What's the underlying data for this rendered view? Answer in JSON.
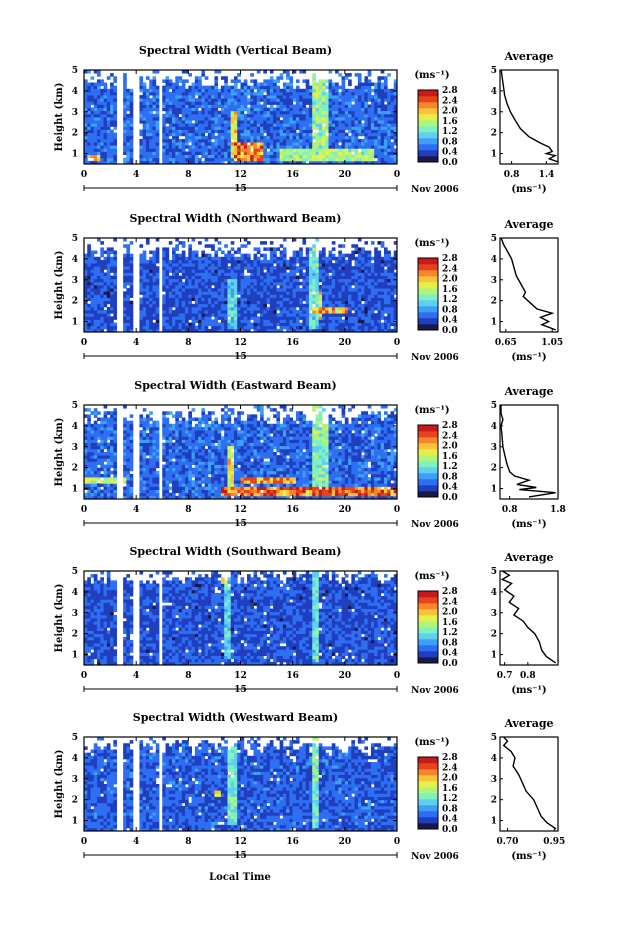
{
  "figure": {
    "xlabel": "Local Time",
    "units": "(ms⁻¹)",
    "month_label": "Nov 2006",
    "day_label": "15",
    "avg_title": "Average",
    "avg_xlabel": "(ms⁻¹)"
  },
  "chart_data": [
    {
      "type": "heatmap",
      "title": "Spectral Width (Vertical Beam)",
      "ylabel": "Height (km)",
      "x_range_hours": [
        0,
        24
      ],
      "x_ticks": [
        "0",
        "4",
        "8",
        "12",
        "16",
        "20",
        "0"
      ],
      "y_range_km": [
        0.5,
        5
      ],
      "y_ticks": [
        "1",
        "2",
        "3",
        "4",
        "5"
      ],
      "colorbar_ticks": [
        "0.0",
        "0.4",
        "0.8",
        "1.2",
        "1.6",
        "2.0",
        "2.4",
        "2.8"
      ],
      "colorbar_range": [
        0,
        2.8
      ],
      "data_gaps_hours": [
        [
          2.5,
          3.0
        ],
        [
          3.6,
          4.2
        ],
        [
          5.6,
          5.9
        ]
      ],
      "cloud_top_km": 4.3,
      "base_level": 0.55,
      "strong_events": [
        {
          "t": [
            11.5,
            13.5
          ],
          "h": [
            0.6,
            1.4
          ],
          "level": 2.5
        },
        {
          "t": [
            0.2,
            1.0
          ],
          "h": [
            0.6,
            0.9
          ],
          "level": 2.2
        },
        {
          "t": [
            17.5,
            18.5
          ],
          "h": [
            0.6,
            5.0
          ],
          "level": 1.6
        },
        {
          "t": [
            11.2,
            11.6
          ],
          "h": [
            0.8,
            3.0
          ],
          "level": 2.0
        },
        {
          "t": [
            15.0,
            22.0
          ],
          "h": [
            0.6,
            1.1
          ],
          "level": 1.6
        }
      ],
      "profile": {
        "x_ticks": [
          "0.8",
          "1.4"
        ],
        "x_range": [
          0.6,
          1.6
        ],
        "y_range": [
          0.5,
          5
        ],
        "points": [
          [
            0.62,
            5.0
          ],
          [
            0.64,
            4.6
          ],
          [
            0.66,
            4.2
          ],
          [
            0.68,
            3.8
          ],
          [
            0.72,
            3.4
          ],
          [
            0.78,
            3.0
          ],
          [
            0.86,
            2.6
          ],
          [
            0.95,
            2.2
          ],
          [
            1.1,
            1.8
          ],
          [
            1.3,
            1.5
          ],
          [
            1.45,
            1.3
          ],
          [
            1.5,
            1.1
          ],
          [
            1.4,
            1.0
          ],
          [
            1.55,
            0.9
          ],
          [
            1.45,
            0.75
          ],
          [
            1.6,
            0.6
          ]
        ]
      }
    },
    {
      "type": "heatmap",
      "title": "Spectral Width (Northward Beam)",
      "ylabel": "Height (km)",
      "x_range_hours": [
        0,
        24
      ],
      "x_ticks": [
        "0",
        "4",
        "8",
        "12",
        "16",
        "20",
        "0"
      ],
      "y_range_km": [
        0.5,
        5
      ],
      "y_ticks": [
        "1",
        "2",
        "3",
        "4",
        "5"
      ],
      "colorbar_ticks": [
        "0.0",
        "0.4",
        "0.8",
        "1.2",
        "1.6",
        "2.0",
        "2.4",
        "2.8"
      ],
      "colorbar_range": [
        0,
        2.8
      ],
      "data_gaps_hours": [
        [
          2.5,
          3.0
        ],
        [
          3.6,
          4.2
        ],
        [
          5.6,
          5.9
        ]
      ],
      "cloud_top_km": 4.2,
      "base_level": 0.45,
      "strong_events": [
        {
          "t": [
            17.2,
            17.8
          ],
          "h": [
            0.6,
            5.0
          ],
          "level": 1.3
        },
        {
          "t": [
            11.0,
            11.5
          ],
          "h": [
            0.6,
            3.0
          ],
          "level": 1.2
        },
        {
          "t": [
            17.8,
            18.2
          ],
          "h": [
            1.0,
            2.3
          ],
          "level": 2.0
        },
        {
          "t": [
            17.5,
            20.0
          ],
          "h": [
            1.3,
            1.6
          ],
          "level": 2.2
        }
      ],
      "profile": {
        "x_ticks": [
          "0.65",
          "1.05"
        ],
        "x_range": [
          0.6,
          1.1
        ],
        "y_range": [
          0.5,
          5
        ],
        "points": [
          [
            0.61,
            5.0
          ],
          [
            0.63,
            4.7
          ],
          [
            0.66,
            4.4
          ],
          [
            0.7,
            4.0
          ],
          [
            0.72,
            3.6
          ],
          [
            0.74,
            3.2
          ],
          [
            0.78,
            2.8
          ],
          [
            0.82,
            2.4
          ],
          [
            0.8,
            2.2
          ],
          [
            0.86,
            1.9
          ],
          [
            0.92,
            1.6
          ],
          [
            1.05,
            1.4
          ],
          [
            0.95,
            1.2
          ],
          [
            1.02,
            1.0
          ],
          [
            0.96,
            0.85
          ],
          [
            1.08,
            0.6
          ]
        ]
      }
    },
    {
      "type": "heatmap",
      "title": "Spectral Width (Eastward Beam)",
      "ylabel": "Height (km)",
      "x_range_hours": [
        0,
        24
      ],
      "x_ticks": [
        "0",
        "4",
        "8",
        "12",
        "16",
        "20",
        "0"
      ],
      "y_range_km": [
        0.5,
        5
      ],
      "y_ticks": [
        "1",
        "2",
        "3",
        "4",
        "5"
      ],
      "colorbar_ticks": [
        "0.0",
        "0.4",
        "0.8",
        "1.2",
        "1.6",
        "2.0",
        "2.4",
        "2.8"
      ],
      "colorbar_range": [
        0,
        2.8
      ],
      "data_gaps_hours": [
        [
          2.5,
          3.0
        ],
        [
          3.6,
          4.2
        ],
        [
          5.6,
          5.9
        ]
      ],
      "cloud_top_km": 4.3,
      "base_level": 0.55,
      "strong_events": [
        {
          "t": [
            10.5,
            24.0
          ],
          "h": [
            0.6,
            1.0
          ],
          "level": 2.6
        },
        {
          "t": [
            0.0,
            3.0
          ],
          "h": [
            1.2,
            1.5
          ],
          "level": 1.8
        },
        {
          "t": [
            17.5,
            18.5
          ],
          "h": [
            0.6,
            5.0
          ],
          "level": 1.5
        },
        {
          "t": [
            11.0,
            11.4
          ],
          "h": [
            1.0,
            3.0
          ],
          "level": 2.0
        },
        {
          "t": [
            12.0,
            16.0
          ],
          "h": [
            1.2,
            1.5
          ],
          "level": 2.3
        }
      ],
      "profile": {
        "x_ticks": [
          "0.8",
          "1.8"
        ],
        "x_range": [
          0.6,
          1.8
        ],
        "y_range": [
          0.5,
          5
        ],
        "points": [
          [
            0.62,
            5.0
          ],
          [
            0.62,
            4.6
          ],
          [
            0.66,
            4.3
          ],
          [
            0.62,
            4.0
          ],
          [
            0.64,
            3.6
          ],
          [
            0.66,
            3.0
          ],
          [
            0.7,
            2.6
          ],
          [
            0.74,
            2.2
          ],
          [
            0.8,
            1.8
          ],
          [
            0.9,
            1.6
          ],
          [
            1.2,
            1.4
          ],
          [
            0.95,
            1.2
          ],
          [
            1.35,
            1.05
          ],
          [
            1.0,
            0.95
          ],
          [
            1.75,
            0.8
          ],
          [
            1.2,
            0.6
          ]
        ]
      }
    },
    {
      "type": "heatmap",
      "title": "Spectral Width (Southward Beam)",
      "ylabel": "Height (km)",
      "x_range_hours": [
        0,
        24
      ],
      "x_ticks": [
        "0",
        "4",
        "8",
        "12",
        "16",
        "20",
        "0"
      ],
      "y_range_km": [
        0.5,
        5
      ],
      "y_ticks": [
        "1",
        "2",
        "3",
        "4",
        "5"
      ],
      "colorbar_ticks": [
        "0.0",
        "0.4",
        "0.8",
        "1.2",
        "1.6",
        "2.0",
        "2.4",
        "2.8"
      ],
      "colorbar_range": [
        0,
        2.8
      ],
      "data_gaps_hours": [
        [
          2.5,
          3.0
        ],
        [
          3.6,
          4.2
        ],
        [
          5.6,
          5.9
        ]
      ],
      "cloud_top_km": 4.6,
      "base_level": 0.45,
      "strong_events": [
        {
          "t": [
            17.3,
            17.8
          ],
          "h": [
            0.6,
            5.0
          ],
          "level": 1.3
        },
        {
          "t": [
            10.7,
            11.2
          ],
          "h": [
            0.8,
            5.0
          ],
          "level": 1.2
        },
        {
          "t": [
            10.5,
            10.9
          ],
          "h": [
            4.3,
            4.9
          ],
          "level": 2.2
        }
      ],
      "profile": {
        "x_ticks": [
          "0.7",
          "0.8"
        ],
        "x_range": [
          0.68,
          0.93
        ],
        "y_range": [
          0.5,
          5
        ],
        "points": [
          [
            0.69,
            5.0
          ],
          [
            0.72,
            4.8
          ],
          [
            0.69,
            4.6
          ],
          [
            0.73,
            4.4
          ],
          [
            0.7,
            4.1
          ],
          [
            0.74,
            3.8
          ],
          [
            0.72,
            3.5
          ],
          [
            0.76,
            3.2
          ],
          [
            0.74,
            2.9
          ],
          [
            0.78,
            2.6
          ],
          [
            0.8,
            2.3
          ],
          [
            0.83,
            2.0
          ],
          [
            0.85,
            1.6
          ],
          [
            0.86,
            1.2
          ],
          [
            0.88,
            0.9
          ],
          [
            0.92,
            0.6
          ]
        ]
      }
    },
    {
      "type": "heatmap",
      "title": "Spectral Width (Westward Beam)",
      "ylabel": "Height (km)",
      "x_range_hours": [
        0,
        24
      ],
      "x_ticks": [
        "0",
        "4",
        "8",
        "12",
        "16",
        "20",
        "0"
      ],
      "y_range_km": [
        0.5,
        5
      ],
      "y_ticks": [
        "1",
        "2",
        "3",
        "4",
        "5"
      ],
      "colorbar_ticks": [
        "0.0",
        "0.4",
        "0.8",
        "1.2",
        "1.6",
        "2.0",
        "2.4",
        "2.8"
      ],
      "colorbar_range": [
        0,
        2.8
      ],
      "data_gaps_hours": [
        [
          2.5,
          3.0
        ],
        [
          3.6,
          4.2
        ],
        [
          5.6,
          5.9
        ]
      ],
      "cloud_top_km": 4.4,
      "base_level": 0.5,
      "strong_events": [
        {
          "t": [
            17.3,
            17.9
          ],
          "h": [
            0.6,
            5.0
          ],
          "level": 1.4
        },
        {
          "t": [
            11.0,
            11.5
          ],
          "h": [
            0.8,
            5.0
          ],
          "level": 1.3
        },
        {
          "t": [
            10.0,
            10.4
          ],
          "h": [
            2.0,
            2.4
          ],
          "level": 2.4
        }
      ],
      "profile": {
        "x_ticks": [
          "0.70",
          "0.95"
        ],
        "x_range": [
          0.66,
          0.97
        ],
        "y_range": [
          0.5,
          5
        ],
        "points": [
          [
            0.68,
            5.0
          ],
          [
            0.7,
            4.8
          ],
          [
            0.68,
            4.6
          ],
          [
            0.72,
            4.3
          ],
          [
            0.74,
            4.0
          ],
          [
            0.73,
            3.6
          ],
          [
            0.76,
            3.2
          ],
          [
            0.78,
            2.8
          ],
          [
            0.8,
            2.4
          ],
          [
            0.84,
            2.0
          ],
          [
            0.86,
            1.6
          ],
          [
            0.88,
            1.2
          ],
          [
            0.91,
            0.9
          ],
          [
            0.96,
            0.6
          ]
        ]
      }
    }
  ]
}
